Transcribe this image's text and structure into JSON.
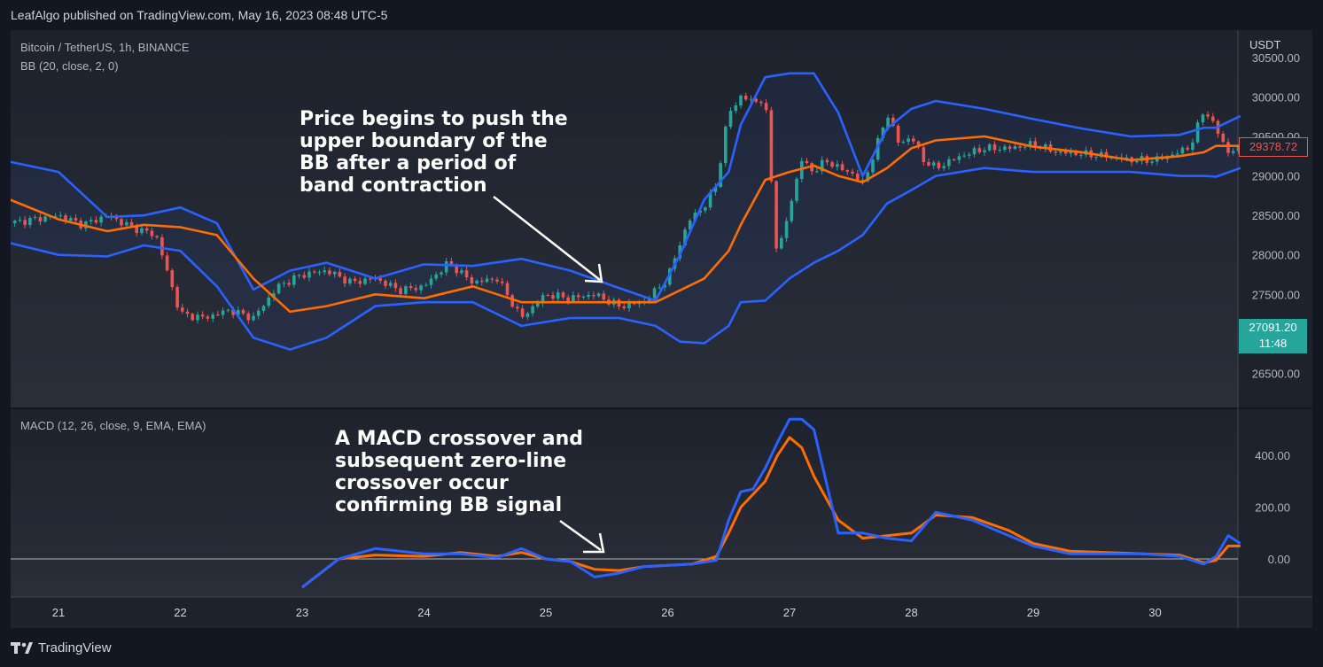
{
  "header": {
    "published": "LeafAlgo published on TradingView.com, May 16, 2023 08:48 UTC-5"
  },
  "footer": {
    "brand": "TradingView"
  },
  "legend": {
    "symbol": "Bitcoin / TetherUS, 1h, BINANCE",
    "bb": "BB (20, close, 2, 0)",
    "macd": "MACD (12, 26, close, 9, EMA, EMA)"
  },
  "annotations": {
    "price_note": "Price begins to push the\nupper boundary of the\nBB after a period of\nband contraction",
    "macd_note": "A MACD crossover and\nsubsequent zero-line\ncrossover occur\nconfirming BB signal"
  },
  "price_axis": {
    "currency": "USDT",
    "ticks": [
      "30500.00",
      "30000.00",
      "29500.00",
      "29000.00",
      "28500.00",
      "28000.00",
      "27500.00",
      "26500.00"
    ]
  },
  "price_tags": {
    "bb_value": "29378.72",
    "last_price": "27091.20",
    "countdown": "11:48"
  },
  "macd_axis": {
    "ticks": [
      "400.00",
      "200.00",
      "0.00"
    ]
  },
  "time_axis": {
    "labels": [
      "21",
      "22",
      "23",
      "24",
      "25",
      "26",
      "27",
      "28",
      "29",
      "30"
    ]
  },
  "colors": {
    "background": "#1e222d",
    "bb_band": "#2962ff",
    "bb_basis": "#ff6d00",
    "up": "#26a69a",
    "down": "#ef5350",
    "macd_line": "#2962ff",
    "signal_line": "#ff6d00"
  },
  "chart_data": [
    {
      "type": "candlestick",
      "title": "Bitcoin / TetherUS, 1h, BINANCE",
      "indicator": "BB (20, close, 2, 0)",
      "ylim": [
        26200,
        30500
      ],
      "x_labels": [
        "21",
        "22",
        "23",
        "24",
        "25",
        "26",
        "27",
        "28",
        "29",
        "30"
      ],
      "x_positions": [
        0,
        1,
        2,
        3,
        4,
        5,
        6,
        7,
        8,
        9
      ],
      "xlim": [
        -0.4,
        9.7
      ],
      "series": [
        {
          "name": "Upper",
          "x": [
            -0.4,
            0.0,
            0.4,
            0.7,
            1.0,
            1.3,
            1.6,
            1.9,
            2.2,
            2.6,
            3.0,
            3.4,
            3.8,
            4.2,
            4.6,
            4.9,
            5.1,
            5.3,
            5.5,
            5.6,
            5.8,
            6.0,
            6.2,
            6.4,
            6.6,
            6.8,
            7.0,
            7.2,
            7.6,
            8.0,
            8.4,
            8.8,
            9.2,
            9.4,
            9.5,
            9.7
          ],
          "y": [
            29180,
            29050,
            28480,
            28500,
            28600,
            28400,
            27560,
            27800,
            27900,
            27700,
            27880,
            27860,
            27950,
            27800,
            27580,
            27420,
            28000,
            28700,
            29050,
            29650,
            30250,
            30300,
            30300,
            29800,
            29000,
            29600,
            29850,
            29950,
            29850,
            29720,
            29600,
            29500,
            29520,
            29610,
            29610,
            29760
          ]
        },
        {
          "name": "Basis",
          "x": [
            -0.4,
            0.0,
            0.4,
            0.7,
            1.0,
            1.3,
            1.6,
            1.9,
            2.2,
            2.6,
            3.0,
            3.4,
            3.8,
            4.2,
            4.6,
            4.9,
            5.1,
            5.3,
            5.5,
            5.6,
            5.8,
            6.0,
            6.2,
            6.4,
            6.6,
            6.8,
            7.0,
            7.2,
            7.6,
            8.0,
            8.4,
            8.8,
            9.2,
            9.4,
            9.5,
            9.7
          ],
          "y": [
            28700,
            28450,
            28300,
            28380,
            28350,
            28250,
            27700,
            27280,
            27350,
            27500,
            27450,
            27600,
            27400,
            27400,
            27400,
            27400,
            27550,
            27700,
            28050,
            28380,
            28950,
            29050,
            29130,
            29000,
            28920,
            29100,
            29350,
            29450,
            29500,
            29370,
            29300,
            29200,
            29250,
            29300,
            29380,
            29380
          ]
        },
        {
          "name": "Lower",
          "x": [
            -0.4,
            0.0,
            0.4,
            0.7,
            1.0,
            1.3,
            1.6,
            1.9,
            2.2,
            2.6,
            3.0,
            3.4,
            3.8,
            4.2,
            4.6,
            4.9,
            5.1,
            5.3,
            5.5,
            5.6,
            5.8,
            6.0,
            6.2,
            6.4,
            6.6,
            6.8,
            7.0,
            7.2,
            7.6,
            8.0,
            8.4,
            8.8,
            9.2,
            9.4,
            9.5,
            9.7
          ],
          "y": [
            28150,
            28000,
            27980,
            28120,
            28050,
            27600,
            26950,
            26800,
            26950,
            27350,
            27400,
            27400,
            27100,
            27200,
            27200,
            27100,
            26900,
            26880,
            27100,
            27400,
            27420,
            27700,
            27900,
            28050,
            28250,
            28650,
            28820,
            29000,
            29100,
            29050,
            29050,
            29050,
            29000,
            29000,
            28990,
            29100
          ]
        },
        {
          "name": "Close",
          "x": [
            -0.4,
            0.0,
            0.2,
            0.4,
            0.6,
            0.8,
            1.0,
            1.2,
            1.4,
            1.6,
            1.8,
            2.0,
            2.2,
            2.4,
            2.6,
            2.8,
            3.0,
            3.2,
            3.4,
            3.6,
            3.8,
            4.0,
            4.2,
            4.4,
            4.6,
            4.8,
            5.0,
            5.1,
            5.2,
            5.3,
            5.4,
            5.5,
            5.6,
            5.7,
            5.8,
            5.9,
            6.0,
            6.1,
            6.2,
            6.3,
            6.4,
            6.5,
            6.6,
            6.7,
            6.8,
            6.9,
            7.0,
            7.1,
            7.2,
            7.4,
            7.6,
            7.8,
            8.0,
            8.2,
            8.4,
            8.6,
            8.8,
            9.0,
            9.2,
            9.3,
            9.4,
            9.5,
            9.6,
            9.7
          ],
          "y": [
            28400,
            28500,
            28380,
            28500,
            28350,
            28250,
            27250,
            27200,
            27300,
            27200,
            27600,
            27750,
            27800,
            27650,
            27700,
            27550,
            27600,
            27900,
            27650,
            27700,
            27200,
            27500,
            27450,
            27500,
            27350,
            27400,
            27700,
            28150,
            28500,
            28600,
            28900,
            29800,
            30000,
            29950,
            29950,
            27950,
            28600,
            29200,
            29050,
            29200,
            29100,
            29050,
            28900,
            29300,
            29800,
            29400,
            29500,
            29200,
            29100,
            29250,
            29350,
            29350,
            29400,
            29300,
            29280,
            29250,
            29200,
            29200,
            29300,
            29400,
            29850,
            29600,
            29300,
            29350
          ]
        }
      ],
      "last_price": 27091.2,
      "bb_last_value": 29378.72
    },
    {
      "type": "line",
      "title": "MACD (12, 26, close, 9, EMA, EMA)",
      "ylim": [
        -110,
        560
      ],
      "x_labels": [
        "21",
        "22",
        "23",
        "24",
        "25",
        "26",
        "27",
        "28",
        "29",
        "30"
      ],
      "series": [
        {
          "name": "MACD",
          "x": [
            2.0,
            2.3,
            2.6,
            3.0,
            3.3,
            3.6,
            3.8,
            4.0,
            4.2,
            4.4,
            4.6,
            4.8,
            5.0,
            5.2,
            5.4,
            5.5,
            5.6,
            5.7,
            5.8,
            5.9,
            6.0,
            6.1,
            6.2,
            6.4,
            6.6,
            6.8,
            7.0,
            7.2,
            7.5,
            7.8,
            8.0,
            8.3,
            8.6,
            8.9,
            9.2,
            9.4,
            9.5,
            9.6,
            9.7
          ],
          "y": [
            -110,
            0,
            40,
            20,
            20,
            5,
            40,
            0,
            -10,
            -70,
            -55,
            -30,
            -25,
            -20,
            -5,
            150,
            260,
            270,
            350,
            450,
            540,
            540,
            500,
            100,
            100,
            80,
            70,
            180,
            150,
            90,
            50,
            20,
            20,
            20,
            10,
            -20,
            10,
            90,
            60
          ]
        },
        {
          "name": "Signal",
          "x": [
            2.0,
            2.3,
            2.6,
            3.0,
            3.3,
            3.6,
            3.8,
            4.0,
            4.2,
            4.4,
            4.6,
            4.8,
            5.0,
            5.2,
            5.4,
            5.5,
            5.6,
            5.7,
            5.8,
            5.9,
            6.0,
            6.1,
            6.2,
            6.4,
            6.6,
            6.8,
            7.0,
            7.2,
            7.5,
            7.8,
            8.0,
            8.3,
            8.6,
            8.9,
            9.2,
            9.4,
            9.5,
            9.6,
            9.7
          ],
          "y": [
            -110,
            0,
            15,
            10,
            25,
            10,
            25,
            0,
            -10,
            -40,
            -45,
            -30,
            -25,
            -20,
            10,
            100,
            200,
            250,
            300,
            400,
            470,
            430,
            320,
            150,
            80,
            90,
            100,
            170,
            160,
            110,
            60,
            30,
            25,
            20,
            15,
            -15,
            -5,
            50,
            50
          ]
        }
      ],
      "zero_line": 0
    }
  ]
}
